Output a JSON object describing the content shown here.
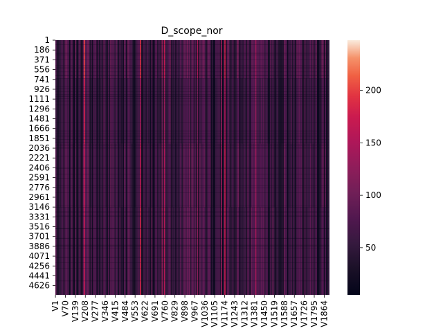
{
  "chart_data": {
    "type": "heatmap",
    "title": "D_scope_nor",
    "xlabel": "",
    "ylabel": "",
    "y_tick_labels": [
      "1",
      "186",
      "371",
      "556",
      "741",
      "926",
      "1111",
      "1296",
      "1481",
      "1666",
      "1851",
      "2036",
      "2221",
      "2406",
      "2591",
      "2776",
      "2961",
      "3146",
      "3331",
      "3516",
      "3701",
      "3886",
      "4071",
      "4256",
      "4441",
      "4626"
    ],
    "x_tick_labels": [
      "V1",
      "V70",
      "V139",
      "V208",
      "V277",
      "V346",
      "V415",
      "V484",
      "V553",
      "V622",
      "V691",
      "V760",
      "V829",
      "V898",
      "V967",
      "V1036",
      "V1105",
      "V1174",
      "V1243",
      "V1312",
      "V1381",
      "V1450",
      "V1519",
      "V1588",
      "V1657",
      "V1726",
      "V1795",
      "V1864"
    ],
    "n_rows": 4800,
    "n_cols": 1900,
    "colorbar": {
      "colormap": "rocket",
      "ticks": [
        50,
        100,
        150,
        200
      ],
      "range": [
        5,
        248
      ]
    }
  }
}
